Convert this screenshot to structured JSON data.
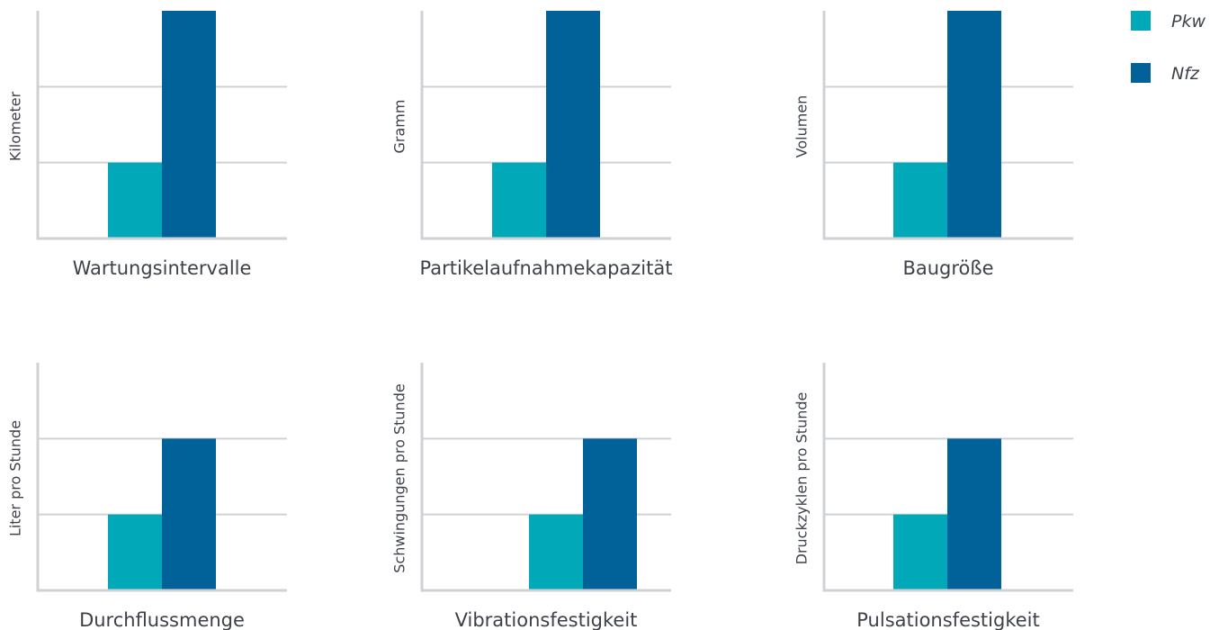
{
  "colors": {
    "pkw": "#00a8b8",
    "nfz": "#006298",
    "gridline": "#cfd2d4",
    "axis": "#cfd2d4",
    "text": "#3d4249"
  },
  "legend": {
    "position": "top-right",
    "items": [
      {
        "label": "Pkw",
        "color_key": "pkw"
      },
      {
        "label": "Nfz",
        "color_key": "nfz"
      }
    ]
  },
  "chart_data": [
    {
      "type": "bar",
      "title": "Wartungsintervalle",
      "ylabel": "Kilometer",
      "categories": [
        "Wartungsintervalle"
      ],
      "series": [
        {
          "name": "Pkw",
          "values": [
            1
          ]
        },
        {
          "name": "Nfz",
          "values": [
            3
          ]
        }
      ],
      "ylim": [
        0,
        3
      ],
      "grid": true
    },
    {
      "type": "bar",
      "title": "Partikelaufnahmekapazität",
      "ylabel": "Gramm",
      "categories": [
        "Partikelaufnahmekapazität"
      ],
      "series": [
        {
          "name": "Pkw",
          "values": [
            1
          ]
        },
        {
          "name": "Nfz",
          "values": [
            3
          ]
        }
      ],
      "ylim": [
        0,
        3
      ],
      "grid": true
    },
    {
      "type": "bar",
      "title": "Baugröße",
      "ylabel": "Volumen",
      "categories": [
        "Baugröße"
      ],
      "series": [
        {
          "name": "Pkw",
          "values": [
            1
          ]
        },
        {
          "name": "Nfz",
          "values": [
            3
          ]
        }
      ],
      "ylim": [
        0,
        3
      ],
      "grid": true
    },
    {
      "type": "bar",
      "title": "Durchflussmenge",
      "ylabel": "Liter pro Stunde",
      "categories": [
        "Durchflussmenge"
      ],
      "series": [
        {
          "name": "Pkw",
          "values": [
            1
          ]
        },
        {
          "name": "Nfz",
          "values": [
            2
          ]
        }
      ],
      "ylim": [
        0,
        3
      ],
      "grid": true
    },
    {
      "type": "bar",
      "title": "Vibrationsfestigkeit",
      "ylabel": "Schwingungen pro Stunde",
      "categories": [
        "Vibrationsfestigkeit"
      ],
      "series": [
        {
          "name": "Pkw",
          "values": [
            1
          ]
        },
        {
          "name": "Nfz",
          "values": [
            2
          ]
        }
      ],
      "ylim": [
        0,
        3
      ],
      "grid": true
    },
    {
      "type": "bar",
      "title": "Pulsationsfestigkeit",
      "ylabel": "Druckzyklen pro Stunde",
      "categories": [
        "Pulsationsfestigkeit"
      ],
      "series": [
        {
          "name": "Pkw",
          "values": [
            1
          ]
        },
        {
          "name": "Nfz",
          "values": [
            2
          ]
        }
      ],
      "ylim": [
        0,
        3
      ],
      "grid": true
    }
  ]
}
